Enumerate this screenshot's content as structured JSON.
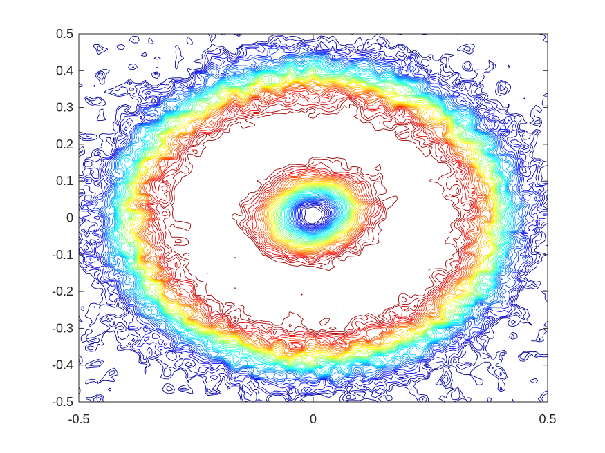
{
  "chart_data": {
    "type": "contour",
    "title": "",
    "xlabel": "",
    "ylabel": "",
    "xlim": [
      -0.5,
      0.5
    ],
    "ylim": [
      -0.5,
      0.5
    ],
    "x_ticks": [
      -0.5,
      0,
      0.5
    ],
    "x_tick_labels": [
      "-0.5",
      "0",
      "0.5"
    ],
    "y_ticks": [
      0.5,
      0.4,
      0.3,
      0.2,
      0.1,
      0,
      -0.1,
      -0.2,
      -0.3,
      -0.4,
      -0.5
    ],
    "y_tick_labels": [
      "0.5",
      "0.4",
      "0.3",
      "0.2",
      "0.1",
      "0",
      "-0.1",
      "-0.2",
      "-0.3",
      "-0.4",
      "-0.5"
    ],
    "grid": false,
    "colormap": "jet",
    "level_count": 40,
    "features": {
      "outer_ring_center": [
        0.0,
        0.0
      ],
      "outer_ring_semi_axes": [
        0.4,
        0.39
      ],
      "inner_hole_center": [
        0.0,
        0.01
      ],
      "inner_hole_semi_axes": [
        0.08,
        0.07
      ],
      "hot_spots": [
        [
          -0.28,
          0.0
        ],
        [
          -0.17,
          0.08
        ],
        [
          0.28,
          0.03
        ],
        [
          0.17,
          -0.07
        ]
      ]
    }
  }
}
